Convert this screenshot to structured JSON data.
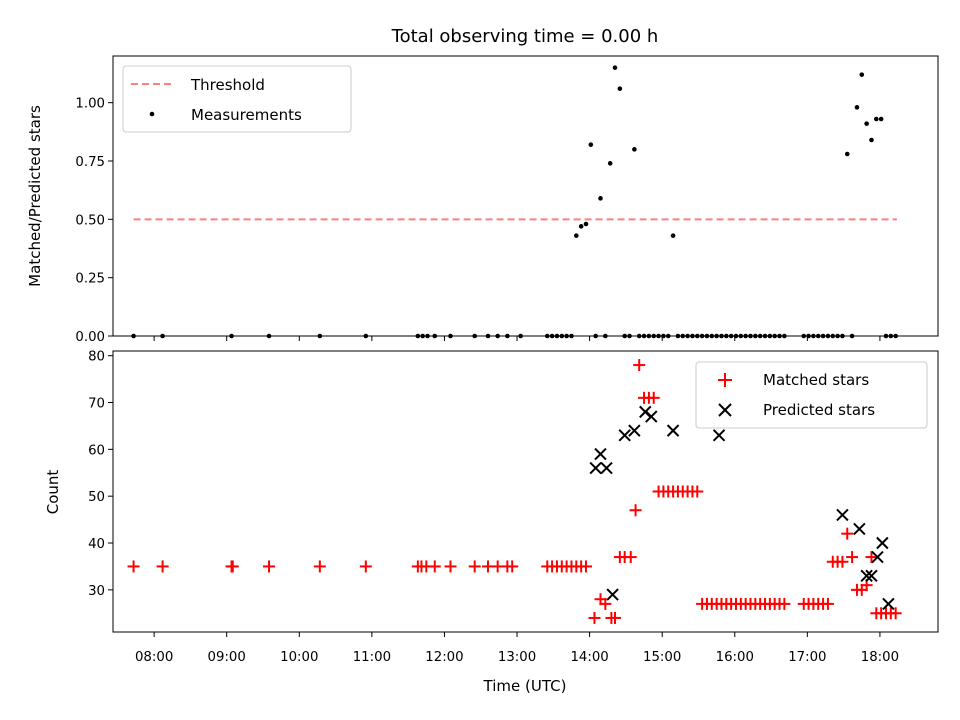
{
  "chart_data": [
    {
      "type": "scatter",
      "title": "Total observing time = 0.00 h",
      "xlabel": "",
      "ylabel": "Matched/Predicted stars",
      "ylim": [
        0,
        1.2
      ],
      "yticks": [
        "0.00",
        "0.25",
        "0.50",
        "0.75",
        "1.00"
      ],
      "ytick_values": [
        0,
        0.25,
        0.5,
        0.75,
        1.0
      ],
      "legend_position": "top-left",
      "threshold": {
        "name": "Threshold",
        "value": 0.5,
        "x_range": [
          "07:43",
          "18:14"
        ],
        "color": "#ff7f7f",
        "style": "dashed"
      },
      "series": [
        {
          "name": "Measurements",
          "color": "#000000",
          "marker": "dot",
          "x": [
            "07:43",
            "08:07",
            "09:04",
            "09:35",
            "10:17",
            "10:55",
            "11:38",
            "11:42",
            "11:46",
            "11:52",
            "12:05",
            "12:25",
            "12:36",
            "12:44",
            "12:52",
            "13:03",
            "13:25",
            "13:29",
            "13:33",
            "13:37",
            "13:41",
            "13:45",
            "13:49",
            "13:53",
            "13:57",
            "14:01",
            "14:05",
            "14:09",
            "14:13",
            "14:17",
            "14:21",
            "14:25",
            "14:29",
            "14:33",
            "14:37",
            "14:41",
            "14:45",
            "14:49",
            "14:53",
            "14:57",
            "15:01",
            "15:05",
            "15:09",
            "15:13",
            "15:17",
            "15:21",
            "15:25",
            "15:29",
            "15:33",
            "15:37",
            "15:41",
            "15:45",
            "15:49",
            "15:53",
            "15:57",
            "16:01",
            "16:05",
            "16:09",
            "16:13",
            "16:17",
            "16:21",
            "16:25",
            "16:29",
            "16:33",
            "16:37",
            "16:41",
            "16:57",
            "17:01",
            "17:05",
            "17:09",
            "17:13",
            "17:17",
            "17:21",
            "17:25",
            "17:29",
            "17:33",
            "17:37",
            "17:41",
            "17:45",
            "17:49",
            "17:53",
            "17:57",
            "18:01",
            "18:05",
            "18:09",
            "18:13"
          ],
          "y": [
            0,
            0,
            0,
            0,
            0,
            0,
            0,
            0,
            0,
            0,
            0,
            0,
            0,
            0,
            0,
            0,
            0,
            0,
            0,
            0,
            0,
            0,
            0.43,
            0.47,
            0.48,
            0.82,
            0,
            0.59,
            0,
            0.74,
            1.15,
            1.06,
            0,
            0,
            0.8,
            0,
            0,
            0,
            0,
            0,
            0,
            0,
            0.43,
            0,
            0,
            0,
            0,
            0,
            0,
            0,
            0,
            0,
            0,
            0,
            0,
            0,
            0,
            0,
            0,
            0,
            0,
            0,
            0,
            0,
            0,
            0,
            0,
            0,
            0,
            0,
            0,
            0,
            0,
            0,
            0,
            0.78,
            0,
            0.98,
            1.12,
            0.91,
            0.84,
            0.93,
            0.93,
            0,
            0,
            0
          ]
        }
      ]
    },
    {
      "type": "scatter",
      "title": "",
      "xlabel": "Time (UTC)",
      "ylabel": "Count",
      "ylim": [
        21,
        81
      ],
      "yticks": [
        "30",
        "40",
        "50",
        "60",
        "70",
        "80"
      ],
      "ytick_values": [
        30,
        40,
        50,
        60,
        70,
        80
      ],
      "xticks": [
        "08:00",
        "09:00",
        "10:00",
        "11:00",
        "12:00",
        "13:00",
        "14:00",
        "15:00",
        "16:00",
        "17:00",
        "18:00"
      ],
      "xlim": [
        "07:26",
        "18:48"
      ],
      "legend_position": "top-right",
      "series": [
        {
          "name": "Matched stars",
          "color": "#ff0000",
          "marker": "plus",
          "x": [
            "07:43",
            "08:07",
            "09:04",
            "09:05",
            "09:35",
            "10:17",
            "10:55",
            "11:38",
            "11:41",
            "11:45",
            "11:52",
            "12:05",
            "12:25",
            "12:36",
            "12:44",
            "12:52",
            "12:56",
            "13:25",
            "13:29",
            "13:33",
            "13:37",
            "13:41",
            "13:45",
            "13:49",
            "13:53",
            "13:57",
            "14:04",
            "14:09",
            "14:13",
            "14:18",
            "14:21",
            "14:25",
            "14:29",
            "14:34",
            "14:38",
            "14:41",
            "14:45",
            "14:49",
            "14:53",
            "14:57",
            "15:01",
            "15:05",
            "15:09",
            "15:13",
            "15:17",
            "15:21",
            "15:25",
            "15:29",
            "15:33",
            "15:37",
            "15:41",
            "15:45",
            "15:49",
            "15:53",
            "15:57",
            "16:01",
            "16:05",
            "16:09",
            "16:13",
            "16:17",
            "16:21",
            "16:25",
            "16:29",
            "16:33",
            "16:37",
            "16:41",
            "16:57",
            "17:01",
            "17:05",
            "17:09",
            "17:13",
            "17:17",
            "17:21",
            "17:25",
            "17:29",
            "17:33",
            "17:37",
            "17:41",
            "17:45",
            "17:49",
            "17:53",
            "17:57",
            "18:01",
            "18:05",
            "18:09",
            "18:13"
          ],
          "y": [
            35,
            35,
            35,
            35,
            35,
            35,
            35,
            35,
            35,
            35,
            35,
            35,
            35,
            35,
            35,
            35,
            35,
            35,
            35,
            35,
            35,
            35,
            35,
            35,
            35,
            35,
            24,
            28,
            27,
            24,
            24,
            37,
            37,
            37,
            47,
            78,
            71,
            71,
            71,
            51,
            51,
            51,
            51,
            51,
            51,
            51,
            51,
            51,
            27,
            27,
            27,
            27,
            27,
            27,
            27,
            27,
            27,
            27,
            27,
            27,
            27,
            27,
            27,
            27,
            27,
            27,
            27,
            27,
            27,
            27,
            27,
            27,
            36,
            36,
            36,
            42,
            37,
            30,
            30,
            31,
            37,
            25,
            25,
            25,
            25,
            25
          ]
        },
        {
          "name": "Predicted stars",
          "color": "#000000",
          "marker": "x",
          "x": [
            "14:05",
            "14:09",
            "14:14",
            "14:19",
            "14:29",
            "14:37",
            "14:46",
            "14:51",
            "15:09",
            "15:47",
            "17:29",
            "17:43",
            "17:49",
            "17:53",
            "17:58",
            "18:02",
            "18:07"
          ],
          "y": [
            56,
            59,
            56,
            29,
            63,
            64,
            68,
            67,
            64,
            63,
            46,
            43,
            33,
            33,
            37,
            40,
            27
          ]
        }
      ]
    }
  ]
}
